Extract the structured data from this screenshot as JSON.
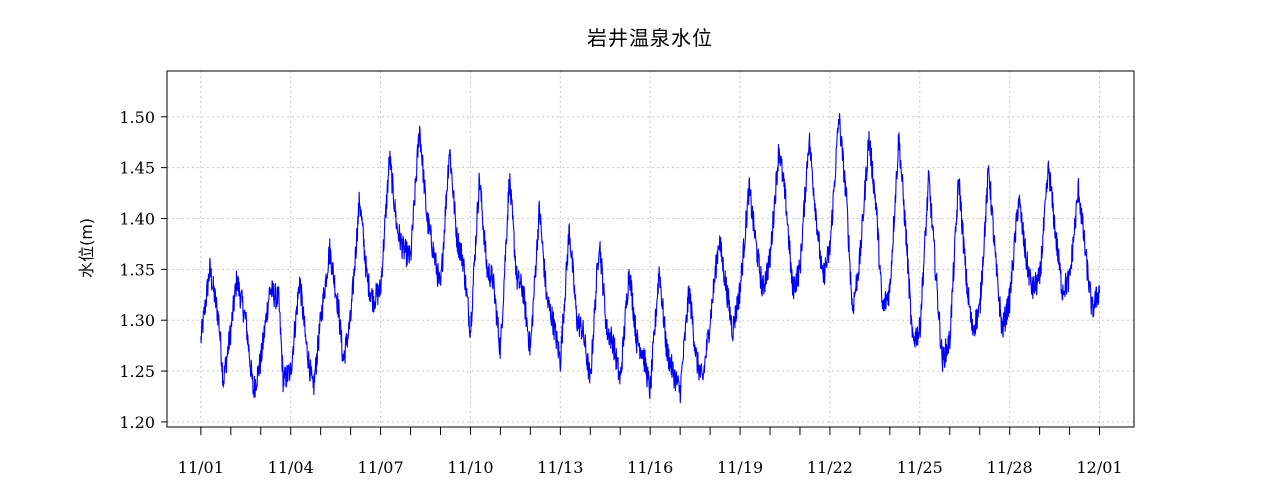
{
  "chart_data": {
    "type": "line",
    "title": "岩井温泉水位",
    "xlabel": "",
    "ylabel": "水位(m)",
    "ylim": [
      1.195,
      1.545
    ],
    "xlim_days": [
      -1.13,
      31.15
    ],
    "yticks": [
      "1.20",
      "1.25",
      "1.30",
      "1.35",
      "1.40",
      "1.45",
      "1.50"
    ],
    "xticks": [
      "11/01",
      "11/04",
      "11/07",
      "11/10",
      "11/13",
      "11/16",
      "11/19",
      "11/22",
      "11/25",
      "11/28",
      "12/01"
    ],
    "grid": true,
    "line_color": "#0000ff",
    "series": [
      {
        "name": "",
        "unit": "m",
        "x_unit": "days from 11/01",
        "noise_amplitude": 0.013,
        "x": [
          0.0,
          0.3,
          0.6,
          0.75,
          1.0,
          1.2,
          1.5,
          1.75,
          2.0,
          2.3,
          2.6,
          2.75,
          3.0,
          3.3,
          3.5,
          3.75,
          4.0,
          4.3,
          4.6,
          4.75,
          5.0,
          5.3,
          5.55,
          5.75,
          6.0,
          6.3,
          6.55,
          6.75,
          7.0,
          7.3,
          7.55,
          7.75,
          8.0,
          8.3,
          8.55,
          8.75,
          9.0,
          9.3,
          9.55,
          9.75,
          10.0,
          10.3,
          10.55,
          10.75,
          11.0,
          11.3,
          11.55,
          11.75,
          12.0,
          12.3,
          12.55,
          12.75,
          13.0,
          13.3,
          13.55,
          13.75,
          14.0,
          14.3,
          14.55,
          14.75,
          15.0,
          15.3,
          15.55,
          15.75,
          16.0,
          16.3,
          16.55,
          16.75,
          17.0,
          17.3,
          17.55,
          17.75,
          18.0,
          18.3,
          18.55,
          18.75,
          19.0,
          19.3,
          19.55,
          19.75,
          20.0,
          20.3,
          20.55,
          20.75,
          21.0,
          21.3,
          21.55,
          21.75,
          22.0,
          22.3,
          22.55,
          22.75,
          23.0,
          23.3,
          23.55,
          23.75,
          24.0,
          24.3,
          24.55,
          24.75,
          25.0,
          25.3,
          25.55,
          25.75,
          26.0,
          26.3,
          26.55,
          26.75,
          27.0,
          27.3,
          27.55,
          27.75,
          28.0,
          28.3,
          28.55,
          28.75,
          29.0,
          29.3,
          29.55,
          29.75,
          30.0
        ],
        "y": [
          1.28,
          1.35,
          1.3,
          1.24,
          1.29,
          1.34,
          1.3,
          1.23,
          1.26,
          1.33,
          1.32,
          1.24,
          1.25,
          1.34,
          1.28,
          1.23,
          1.3,
          1.37,
          1.31,
          1.26,
          1.3,
          1.42,
          1.34,
          1.32,
          1.33,
          1.46,
          1.39,
          1.37,
          1.36,
          1.49,
          1.4,
          1.37,
          1.33,
          1.47,
          1.38,
          1.36,
          1.29,
          1.44,
          1.35,
          1.34,
          1.27,
          1.44,
          1.34,
          1.33,
          1.27,
          1.41,
          1.32,
          1.3,
          1.26,
          1.39,
          1.3,
          1.29,
          1.24,
          1.38,
          1.29,
          1.28,
          1.24,
          1.35,
          1.28,
          1.27,
          1.23,
          1.35,
          1.27,
          1.25,
          1.23,
          1.33,
          1.26,
          1.24,
          1.3,
          1.38,
          1.33,
          1.29,
          1.33,
          1.43,
          1.37,
          1.33,
          1.36,
          1.47,
          1.41,
          1.33,
          1.35,
          1.48,
          1.4,
          1.34,
          1.37,
          1.5,
          1.42,
          1.31,
          1.36,
          1.48,
          1.41,
          1.31,
          1.33,
          1.48,
          1.38,
          1.28,
          1.29,
          1.44,
          1.34,
          1.26,
          1.28,
          1.44,
          1.34,
          1.29,
          1.31,
          1.45,
          1.35,
          1.29,
          1.32,
          1.42,
          1.36,
          1.33,
          1.34,
          1.45,
          1.38,
          1.33,
          1.34,
          1.43,
          1.36,
          1.31,
          1.33
        ]
      }
    ]
  }
}
